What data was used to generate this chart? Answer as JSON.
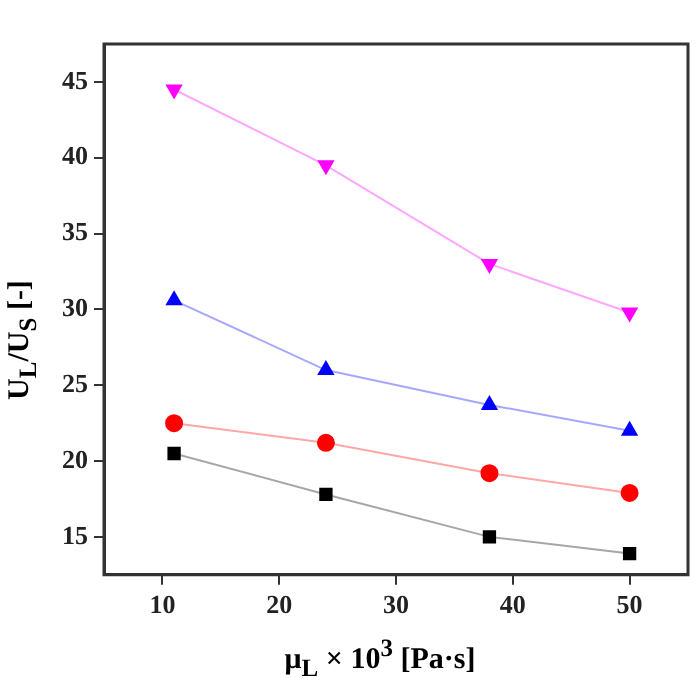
{
  "chart_data": {
    "type": "line",
    "xlabel": "μ$_{L}$ × 10$^{3}$ [Pa·s]",
    "ylabel": "U$_{L}$/U$_{S}$ [-]",
    "x": [
      11,
      24,
      38,
      50
    ],
    "series": [
      {
        "color": "#ff00ff",
        "marker": "triangle-down",
        "values": [
          44.5,
          39.5,
          33,
          29.8
        ]
      },
      {
        "color": "#0000ff",
        "marker": "triangle",
        "values": [
          30.6,
          26,
          23.7,
          22
        ]
      },
      {
        "color": "#ff0000",
        "marker": "circle",
        "values": [
          22.5,
          21.2,
          19.2,
          17.9
        ]
      },
      {
        "color": "#000000",
        "marker": "square",
        "values": [
          20.5,
          17.8,
          15,
          13.9
        ]
      }
    ],
    "xlim": [
      5,
      55
    ],
    "xticks": [
      10,
      20,
      30,
      40,
      50
    ],
    "ylim": [
      12.5,
      47.5
    ],
    "yticks": [
      15,
      20,
      25,
      30,
      35,
      40,
      45
    ],
    "grid": false,
    "legend": false,
    "line_style": "solid"
  }
}
